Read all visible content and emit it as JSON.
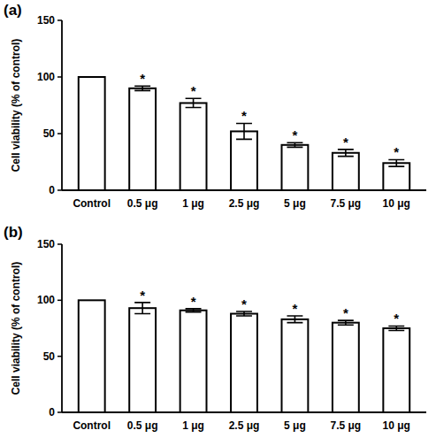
{
  "chart_data": [
    {
      "type": "bar",
      "title": "(a)",
      "y_label": "Cell viability (% of control)",
      "categories": [
        "Control",
        "0.5 μg",
        "1 μg",
        "2.5 μg",
        "5 μg",
        "7.5 μg",
        "10 μg"
      ],
      "values": [
        100,
        90,
        77,
        52,
        40,
        33,
        24
      ],
      "errors": [
        null,
        2,
        4,
        7,
        2,
        3,
        3
      ],
      "annotations": [
        null,
        "*",
        "*",
        "*",
        "*",
        "*",
        "*"
      ],
      "color": "#ffffff",
      "ylim": [
        0,
        150
      ],
      "yticks": [
        0,
        50,
        100,
        150
      ],
      "grid": false
    },
    {
      "type": "bar",
      "title": "(b)",
      "y_label": "Cell viability (% of control)",
      "categories": [
        "Control",
        "0.5 μg",
        "1 μg",
        "2.5 μg",
        "5 μg",
        "7.5 μg",
        "10 μg"
      ],
      "values": [
        100,
        93,
        91,
        88,
        83,
        80,
        75
      ],
      "errors": [
        null,
        5,
        1.5,
        2,
        3,
        2,
        2
      ],
      "annotations": [
        null,
        "*",
        "*",
        "*",
        "*",
        "*",
        "*"
      ],
      "color": "#ffffff",
      "ylim": [
        0,
        150
      ],
      "yticks": [
        0,
        50,
        100,
        150
      ],
      "grid": false
    }
  ]
}
